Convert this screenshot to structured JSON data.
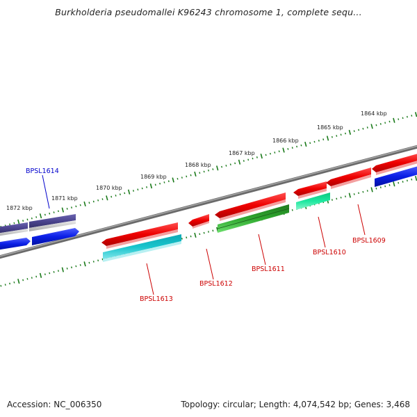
{
  "title": "Burkholderia pseudomallei K96243 chromosome 1, complete sequ...",
  "footer": {
    "accession_text": "Accession: NC_006350",
    "summary_text": "Topology: circular; Length: 4,074,542 bp; Genes: 3,468"
  },
  "scale": {
    "ticks": [
      "1872 kbp",
      "1871 kbp",
      "1870 kbp",
      "1869 kbp",
      "1868 kbp",
      "1867 kbp",
      "1866 kbp",
      "1865 kbp",
      "1864 kbp"
    ]
  },
  "genes": [
    {
      "label": "BPSL1614",
      "color": "#0000cc"
    },
    {
      "label": "BPSL1613",
      "color": "#cc0000"
    },
    {
      "label": "BPSL1612",
      "color": "#cc0000"
    },
    {
      "label": "BPSL1611",
      "color": "#cc0000"
    },
    {
      "label": "BPSL1610",
      "color": "#cc0000"
    },
    {
      "label": "BPSL1609",
      "color": "#cc0000"
    }
  ],
  "colors": {
    "backbone": "#808080",
    "tick": "#1a7a1a",
    "forward": "#ee0000",
    "reverse_blue": "#0a1ee6",
    "purple": "#4c4590",
    "teal": "#10bcc8",
    "green": "#2fa82f",
    "mint": "#1ee8a0"
  }
}
